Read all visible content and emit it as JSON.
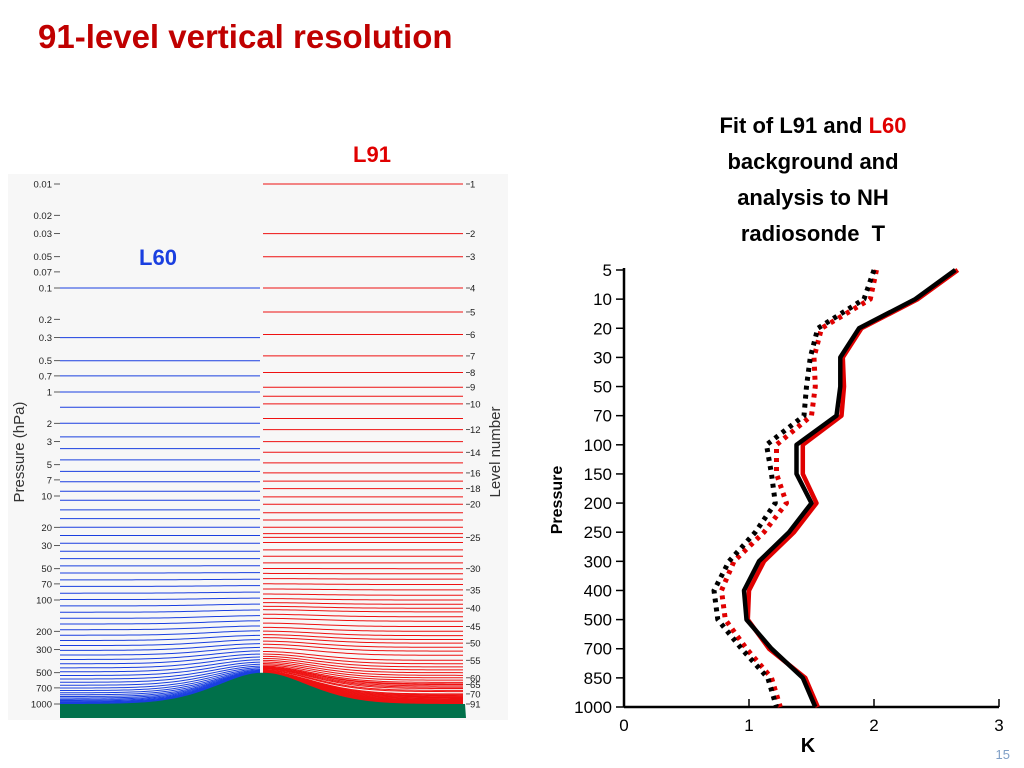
{
  "slide": {
    "title": "91-level vertical resolution",
    "number": "15"
  },
  "chart_data": [
    {
      "type": "line",
      "title": "",
      "series_labels": {
        "left": "L60",
        "right": "L91"
      },
      "ylabel": "Pressure (hPa)",
      "y2label": "Level number",
      "yscale": "log",
      "ylim": [
        0.01,
        1000
      ],
      "pressure_ticks": [
        "0.01",
        "0.02",
        "0.03",
        "0.05",
        "0.07",
        "0.1",
        "0.2",
        "0.3",
        "0.5",
        "0.7",
        "1",
        "2",
        "3",
        "5",
        "7",
        "10",
        "20",
        "30",
        "50",
        "70",
        "100",
        "200",
        "300",
        "500",
        "700",
        "1000"
      ],
      "level_ticks": [
        "1",
        "2",
        "3",
        "4",
        "5",
        "6",
        "7",
        "8",
        "9",
        "10",
        "12",
        "14",
        "16",
        "18",
        "20",
        "25",
        "30",
        "35",
        "40",
        "45",
        "50",
        "55",
        "60",
        "65",
        "70",
        "91"
      ],
      "level_tick_pressures": [
        0.01,
        0.03,
        0.05,
        0.1,
        0.17,
        0.28,
        0.45,
        0.65,
        0.9,
        1.3,
        2.3,
        3.8,
        6,
        8.5,
        12,
        25,
        50,
        80,
        120,
        180,
        260,
        380,
        560,
        650,
        800,
        1000
      ],
      "l60_pressures_hPa": [
        0.1,
        0.3,
        0.5,
        0.7,
        1,
        1.4,
        2,
        2.7,
        3.5,
        4.5,
        5.8,
        7.3,
        9,
        11,
        13.6,
        16.5,
        20,
        24,
        28.5,
        34,
        40,
        47,
        55,
        64,
        74,
        86,
        99,
        114,
        131,
        150,
        170,
        193,
        218,
        245,
        274,
        305,
        338,
        373,
        410,
        449,
        490,
        532,
        575,
        618,
        660,
        702,
        742,
        780,
        815,
        847,
        876,
        902,
        925,
        945,
        962,
        976,
        987,
        994,
        998,
        1000
      ],
      "l91_pressures_hPa": [
        0.01,
        0.03,
        0.05,
        0.1,
        0.17,
        0.28,
        0.45,
        0.65,
        0.9,
        1.1,
        1.3,
        1.8,
        2.3,
        3,
        3.8,
        4.8,
        6,
        7.2,
        8.5,
        10.2,
        12,
        14.5,
        17,
        20,
        23,
        25,
        28,
        33,
        38,
        44,
        50,
        56,
        63,
        71,
        80,
        90,
        100,
        110,
        120,
        130,
        145,
        160,
        180,
        200,
        220,
        240,
        260,
        285,
        310,
        340,
        380,
        410,
        440,
        470,
        500,
        530,
        560,
        590,
        620,
        640,
        650,
        670,
        690,
        710,
        740,
        760,
        800,
        815,
        830,
        845,
        860,
        875,
        890,
        905,
        918,
        930,
        942,
        952,
        961,
        969,
        976,
        982,
        987,
        991,
        994,
        996,
        998,
        999,
        999.5,
        999.8,
        1000
      ],
      "orography": "bell-shaped mountain at centre, surface pressure minimum about 500 hPa"
    },
    {
      "type": "line",
      "title": "Fit of L91 and L60 background and analysis to NH radiosonde  T",
      "xlabel": "K",
      "ylabel": "Pressure",
      "xlim": [
        0,
        3
      ],
      "x_ticks": [
        "0",
        "1",
        "2",
        "3"
      ],
      "y_categories": [
        "5",
        "10",
        "20",
        "30",
        "50",
        "70",
        "100",
        "150",
        "200",
        "250",
        "300",
        "400",
        "500",
        "700",
        "850",
        "1000"
      ],
      "series": [
        {
          "name": "",
          "color": "#e00000",
          "style": "solid",
          "values": [
            2.67,
            2.35,
            1.9,
            1.75,
            1.76,
            1.74,
            1.43,
            1.43,
            1.54,
            1.36,
            1.12,
            1.0,
            0.99,
            1.16,
            1.45,
            1.55
          ]
        },
        {
          "name": "",
          "color": "#000000",
          "style": "solid",
          "values": [
            2.65,
            2.33,
            1.88,
            1.73,
            1.73,
            1.7,
            1.38,
            1.38,
            1.5,
            1.32,
            1.08,
            0.96,
            0.98,
            1.18,
            1.43,
            1.53
          ]
        },
        {
          "name": "",
          "color": "#e00000",
          "style": "dotted",
          "values": [
            2.02,
            1.97,
            1.58,
            1.52,
            1.53,
            1.5,
            1.22,
            1.22,
            1.3,
            1.12,
            0.88,
            0.78,
            0.81,
            0.98,
            1.18,
            1.25
          ]
        },
        {
          "name": "",
          "color": "#000000",
          "style": "dotted",
          "values": [
            2.0,
            1.92,
            1.55,
            1.49,
            1.46,
            1.44,
            1.14,
            1.18,
            1.21,
            1.05,
            0.84,
            0.72,
            0.75,
            0.94,
            1.15,
            1.22
          ]
        }
      ],
      "grid": false,
      "legend": "none"
    }
  ]
}
